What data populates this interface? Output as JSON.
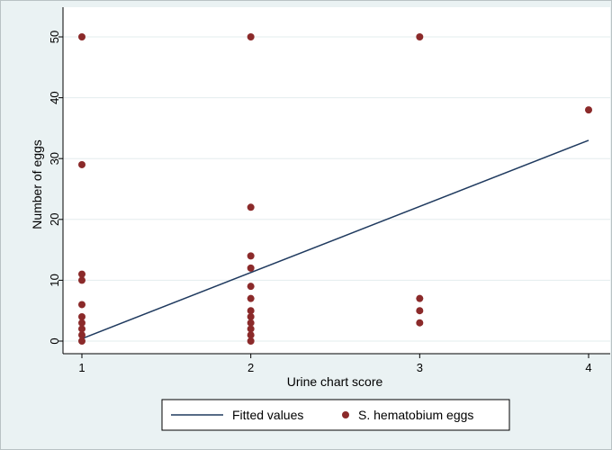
{
  "chart_data": {
    "type": "scatter",
    "xlabel": "Urine chart score",
    "ylabel": "Number of eggs",
    "xlim": [
      1,
      4
    ],
    "ylim": [
      0,
      50
    ],
    "x_ticks": [
      1,
      2,
      3,
      4
    ],
    "y_ticks": [
      0,
      10,
      20,
      30,
      40,
      50
    ],
    "grid": true,
    "legend_position": "bottom",
    "series": [
      {
        "name": "S. hematobium eggs",
        "kind": "scatter",
        "color": "#8b2a2a",
        "points": [
          [
            1,
            50
          ],
          [
            1,
            29
          ],
          [
            1,
            11
          ],
          [
            1,
            10
          ],
          [
            1,
            6
          ],
          [
            1,
            4
          ],
          [
            1,
            3
          ],
          [
            1,
            2
          ],
          [
            1,
            1
          ],
          [
            1,
            0
          ],
          [
            2,
            50
          ],
          [
            2,
            22
          ],
          [
            2,
            14
          ],
          [
            2,
            12
          ],
          [
            2,
            9
          ],
          [
            2,
            7
          ],
          [
            2,
            5
          ],
          [
            2,
            4
          ],
          [
            2,
            3
          ],
          [
            2,
            2
          ],
          [
            2,
            1
          ],
          [
            2,
            0
          ],
          [
            3,
            50
          ],
          [
            3,
            7
          ],
          [
            3,
            5
          ],
          [
            3,
            3
          ],
          [
            4,
            38
          ]
        ]
      },
      {
        "name": "Fitted values",
        "kind": "line",
        "color": "#1f3a5f",
        "points": [
          [
            1,
            0.4
          ],
          [
            4,
            33
          ]
        ]
      }
    ]
  }
}
